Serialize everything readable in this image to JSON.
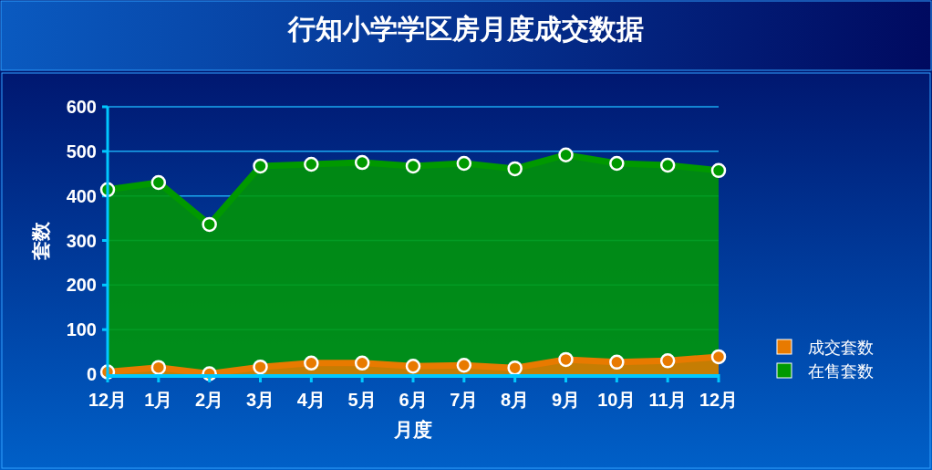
{
  "chart_data": {
    "type": "area",
    "title": "行知小学学区房月度成交数据",
    "xlabel": "月度",
    "ylabel": "套数",
    "categories": [
      "12月",
      "1月",
      "2月",
      "3月",
      "4月",
      "5月",
      "6月",
      "7月",
      "8月",
      "9月",
      "10月",
      "11月",
      "12月"
    ],
    "series": [
      {
        "name": "在售套数",
        "color": "#009900",
        "values": [
          414,
          430,
          336,
          467,
          471,
          475,
          467,
          473,
          461,
          492,
          473,
          469,
          457
        ]
      },
      {
        "name": "成交套数",
        "color": "#e87a00",
        "values": [
          5,
          15,
          1,
          16,
          25,
          25,
          18,
          20,
          14,
          33,
          27,
          30,
          39
        ]
      }
    ],
    "ylim": [
      0,
      600
    ],
    "yticks": [
      0,
      100,
      200,
      300,
      400,
      500,
      600
    ],
    "grid": "y",
    "legend": "bottom right",
    "marker": "circle"
  }
}
